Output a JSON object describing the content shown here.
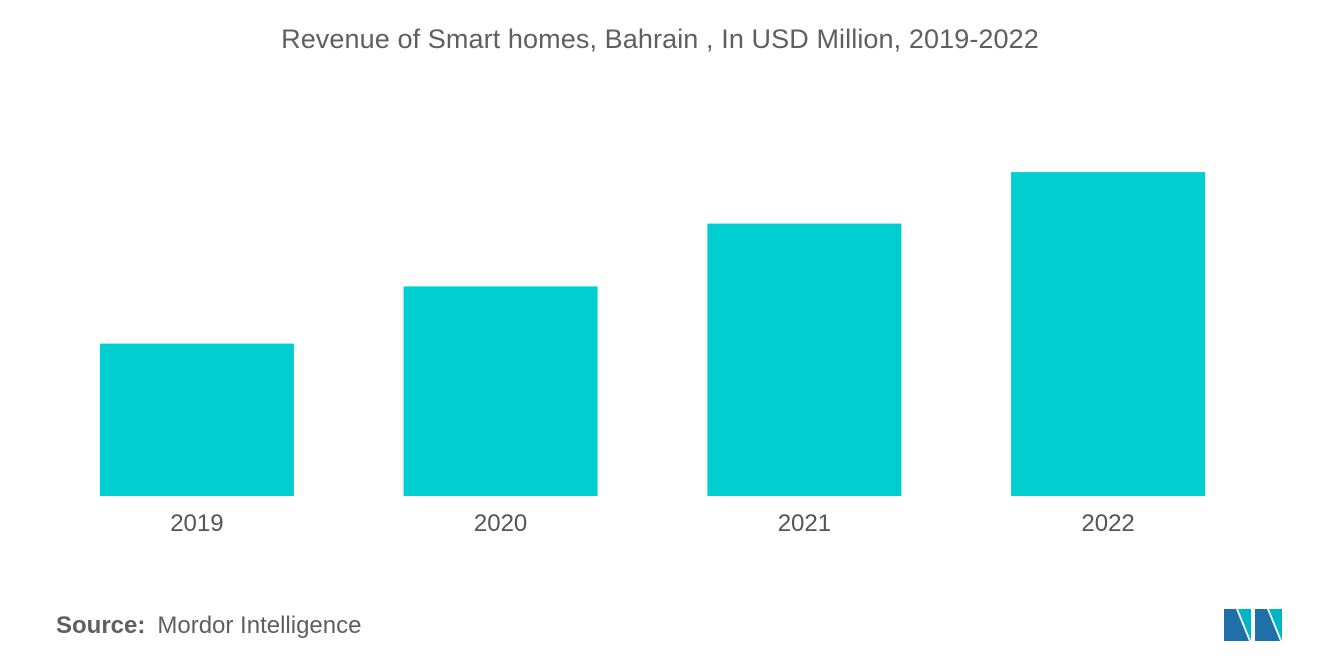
{
  "chart_data": {
    "type": "bar",
    "title": "Revenue of Smart homes, Bahrain , In USD Million, 2019-2022",
    "categories": [
      "2019",
      "2020",
      "2021",
      "2022"
    ],
    "values": [
      4.0,
      5.5,
      7.15,
      8.5
    ],
    "xlabel": "",
    "ylabel": "",
    "ylim": [
      0,
      10
    ],
    "grid": false,
    "legend": "none",
    "bar_color": "#00CED1"
  },
  "source": {
    "label": "Source:",
    "text": "Mordor Intelligence"
  },
  "logo": {
    "icon": "mordor-intelligence-logo-icon",
    "colors": [
      "#1F6FA8",
      "#00B5C8"
    ]
  }
}
